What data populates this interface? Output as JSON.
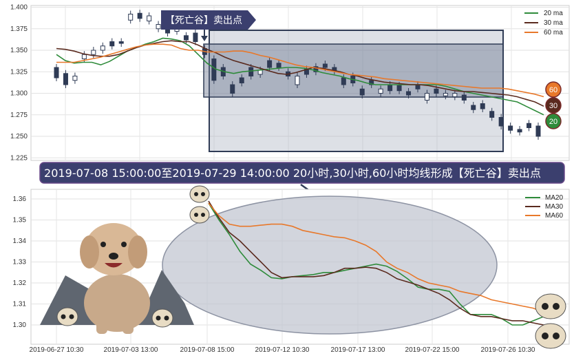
{
  "colors": {
    "ma20": "#2e8b3a",
    "ma30": "#5a2a1e",
    "ma60": "#e8782a",
    "candle_dark": "#2f3b55",
    "box_border": "#2f3b55",
    "banner_bg": "#3b3f6e",
    "ellipse_fill": "#c8cbd6"
  },
  "top_chart": {
    "legend": [
      {
        "key": "ma20",
        "label": "20 ma"
      },
      {
        "key": "ma30",
        "label": "30 ma"
      },
      {
        "key": "ma60",
        "label": "60 ma"
      }
    ],
    "flag_label": "【死亡谷】卖出点",
    "badges": [
      {
        "key": "ma60",
        "label": "60"
      },
      {
        "key": "ma30",
        "label": "30"
      },
      {
        "key": "ma20",
        "label": "20"
      }
    ]
  },
  "banner": {
    "text": "2019-07-08 15:00:00至2019-07-29 14:00:00 20小时,30小时,60小时均线形成【死亡谷】卖出点"
  },
  "bottom_chart": {
    "legend": [
      {
        "key": "ma20",
        "label": "MA20"
      },
      {
        "key": "ma30",
        "label": "MA30"
      },
      {
        "key": "ma60",
        "label": "MA60"
      }
    ]
  },
  "chart_data": [
    {
      "type": "candlestick",
      "ylim": [
        1.222,
        1.402
      ],
      "yticks": [
        "1.400",
        "1.375",
        "1.350",
        "1.325",
        "1.300",
        "1.275",
        "1.250",
        "1.225"
      ],
      "legend_placement": "top-right",
      "grid": true,
      "n": 60,
      "series": [
        {
          "name": "20 ma",
          "values": [
            1.345,
            1.338,
            1.335,
            1.336,
            1.336,
            1.333,
            1.337,
            1.343,
            1.349,
            1.353,
            1.357,
            1.36,
            1.364,
            1.363,
            1.361,
            1.355,
            1.345,
            1.335,
            1.328,
            1.325,
            1.323,
            1.325,
            1.326,
            1.327,
            1.328,
            1.329,
            1.33,
            1.33,
            1.329,
            1.327,
            1.324,
            1.322,
            1.32,
            1.317,
            1.315,
            1.312,
            1.31,
            1.31,
            1.31,
            1.31,
            1.31,
            1.31,
            1.31,
            1.31,
            1.308,
            1.305,
            1.302,
            1.3,
            1.298,
            1.296,
            1.294,
            1.292,
            1.29,
            1.285,
            1.28,
            1.275
          ]
        },
        {
          "name": "30 ma",
          "values": [
            1.352,
            1.351,
            1.349,
            1.346,
            1.344,
            1.343,
            1.343,
            1.345,
            1.349,
            1.353,
            1.356,
            1.358,
            1.36,
            1.361,
            1.36,
            1.36,
            1.356,
            1.351,
            1.347,
            1.342,
            1.338,
            1.335,
            1.332,
            1.329,
            1.326,
            1.323,
            1.322,
            1.324,
            1.327,
            1.33,
            1.329,
            1.327,
            1.325,
            1.322,
            1.32,
            1.317,
            1.315,
            1.313,
            1.312,
            1.311,
            1.31,
            1.31,
            1.309,
            1.307,
            1.305,
            1.303,
            1.302,
            1.302,
            1.301,
            1.3,
            1.299,
            1.298,
            1.296,
            1.293,
            1.29,
            1.285
          ]
        },
        {
          "name": "60 ma",
          "values": [
            1.336,
            1.336,
            1.336,
            1.338,
            1.34,
            1.342,
            1.345,
            1.348,
            1.351,
            1.354,
            1.356,
            1.357,
            1.357,
            1.356,
            1.352,
            1.35,
            1.35,
            1.348,
            1.348,
            1.348,
            1.349,
            1.349,
            1.347,
            1.344,
            1.342,
            1.339,
            1.336,
            1.333,
            1.331,
            1.33,
            1.328,
            1.326,
            1.324,
            1.322,
            1.321,
            1.32,
            1.319,
            1.317,
            1.316,
            1.315,
            1.314,
            1.313,
            1.312,
            1.311,
            1.31,
            1.309,
            1.308,
            1.307,
            1.306,
            1.306,
            1.306,
            1.305,
            1.303,
            1.301,
            1.299,
            1.296
          ]
        }
      ],
      "candles": [
        [
          1.33,
          1.318
        ],
        [
          1.323,
          1.31
        ],
        [
          1.315,
          1.32
        ],
        [
          1.34,
          1.345
        ],
        [
          1.345,
          1.35
        ],
        [
          1.35,
          1.355
        ],
        [
          1.36,
          1.355
        ],
        [
          1.36,
          1.358
        ],
        [
          1.385,
          1.392
        ],
        [
          1.393,
          1.387
        ],
        [
          1.384,
          1.39
        ],
        [
          1.375,
          1.38
        ],
        [
          1.378,
          1.37
        ],
        [
          1.372,
          1.378
        ],
        [
          1.367,
          1.362
        ],
        [
          1.37,
          1.36
        ],
        [
          1.352,
          1.345
        ],
        [
          1.34,
          1.315
        ],
        [
          1.33,
          1.32
        ],
        [
          1.31,
          1.3
        ],
        [
          1.318,
          1.312
        ],
        [
          1.33,
          1.32
        ],
        [
          1.322,
          1.327
        ],
        [
          1.338,
          1.33
        ],
        [
          1.335,
          1.33
        ],
        [
          1.325,
          1.32
        ],
        [
          1.31,
          1.32
        ],
        [
          1.328,
          1.322
        ],
        [
          1.331,
          1.325
        ],
        [
          1.334,
          1.33
        ],
        [
          1.33,
          1.326
        ],
        [
          1.318,
          1.31
        ],
        [
          1.32,
          1.312
        ],
        [
          1.305,
          1.298
        ],
        [
          1.315,
          1.31
        ],
        [
          1.3,
          1.305
        ],
        [
          1.31,
          1.303
        ],
        [
          1.309,
          1.303
        ],
        [
          1.302,
          1.298
        ],
        [
          1.31,
          1.305
        ],
        [
          1.292,
          1.3
        ],
        [
          1.305,
          1.3
        ],
        [
          1.297,
          1.3
        ],
        [
          1.296,
          1.3
        ],
        [
          1.298,
          1.292
        ],
        [
          1.286,
          1.281
        ],
        [
          1.288,
          1.282
        ],
        [
          1.279,
          1.272
        ],
        [
          1.272,
          1.262
        ],
        [
          1.262,
          1.257
        ],
        [
          1.258,
          1.255
        ],
        [
          1.265,
          1.26
        ],
        [
          1.262,
          1.25
        ]
      ]
    },
    {
      "type": "line",
      "ylim": [
        1.296,
        1.363
      ],
      "yticks": [
        "1.36",
        "1.35",
        "1.34",
        "1.33",
        "1.32",
        "1.31",
        "1.30"
      ],
      "x_ticks": [
        "2019-06-27 10:30",
        "2019-07-03 13:00",
        "2019-07-08 15:00",
        "2019-07-12 10:30",
        "2019-07-17 13:00",
        "2019-07-22 15:00",
        "2019-07-26 10:30"
      ],
      "legend_placement": "top-right",
      "grid": true,
      "series": [
        {
          "name": "MA20",
          "values": [
            1.358,
            1.35,
            1.343,
            1.335,
            1.329,
            1.326,
            1.3225,
            1.322,
            1.323,
            1.3235,
            1.324,
            1.325,
            1.325,
            1.326,
            1.327,
            1.328,
            1.329,
            1.328,
            1.3255,
            1.322,
            1.318,
            1.317,
            1.317,
            1.316,
            1.31,
            1.305,
            1.305,
            1.305,
            1.303,
            1.3,
            1.3,
            1.302,
            1.304
          ]
        },
        {
          "name": "MA30",
          "values": [
            1.359,
            1.351,
            1.344,
            1.34,
            1.335,
            1.33,
            1.325,
            1.3225,
            1.323,
            1.323,
            1.323,
            1.3235,
            1.325,
            1.327,
            1.327,
            1.3275,
            1.327,
            1.325,
            1.322,
            1.3205,
            1.319,
            1.317,
            1.315,
            1.312,
            1.308,
            1.305,
            1.304,
            1.304,
            1.303,
            1.302,
            1.302,
            1.301,
            1.3
          ]
        },
        {
          "name": "MA60",
          "values": [
            1.358,
            1.352,
            1.348,
            1.347,
            1.347,
            1.3475,
            1.348,
            1.348,
            1.347,
            1.345,
            1.344,
            1.343,
            1.342,
            1.3415,
            1.34,
            1.338,
            1.335,
            1.33,
            1.327,
            1.325,
            1.322,
            1.32,
            1.319,
            1.318,
            1.316,
            1.315,
            1.314,
            1.312,
            1.311,
            1.31,
            1.309,
            1.308,
            1.306
          ]
        }
      ]
    }
  ]
}
